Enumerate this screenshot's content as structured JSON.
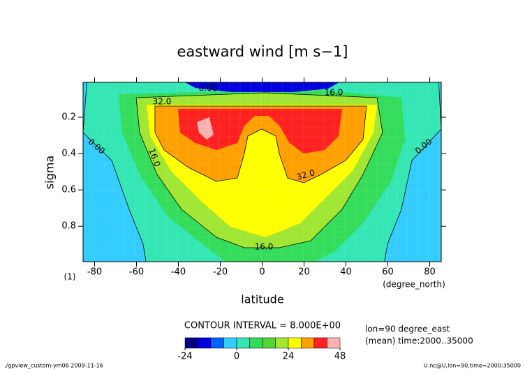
{
  "chart_data": {
    "type": "contour",
    "title": "eastward wind [m s−1]",
    "xlabel": "latitude",
    "ylabel": "sigma",
    "x_unit_label": "(degree_north)",
    "y_unit_label": "(1)",
    "xlim": [
      -85.5,
      85.5
    ],
    "xticks": [
      -80,
      -60,
      -40,
      -20,
      0,
      20,
      40,
      60,
      80
    ],
    "ylim": [
      0.008,
      0.995
    ],
    "y_reversed": true,
    "yticks": [
      0.2,
      0.4,
      0.6,
      0.8
    ],
    "contour_interval_text": "CONTOUR INTERVAL = 8.000E+00",
    "contour_lines": [
      {
        "value": 0,
        "label": "0.00"
      },
      {
        "value": 16,
        "label": "16.0"
      },
      {
        "value": 32,
        "label": "32.0"
      }
    ],
    "colorbar": {
      "levels": [
        -24,
        -18,
        -12,
        -6,
        0,
        6,
        12,
        18,
        24,
        30,
        36,
        42,
        48
      ],
      "colors": [
        "#000080",
        "#0000e0",
        "#0064ff",
        "#33ccff",
        "#33e6b4",
        "#33dc5a",
        "#55d433",
        "#a0e632",
        "#ffff00",
        "#ffa000",
        "#ff2020",
        "#ffb0b0"
      ],
      "ticks": [
        -24,
        0,
        24,
        48
      ]
    },
    "info": [
      "lon=90 degree_east",
      "(mean) time:2000..35000"
    ],
    "footer_left": "./gpview_custom-ym06  2009-11-16",
    "footer_right": "U.nc@U,lon=90,time=2000:35000"
  }
}
